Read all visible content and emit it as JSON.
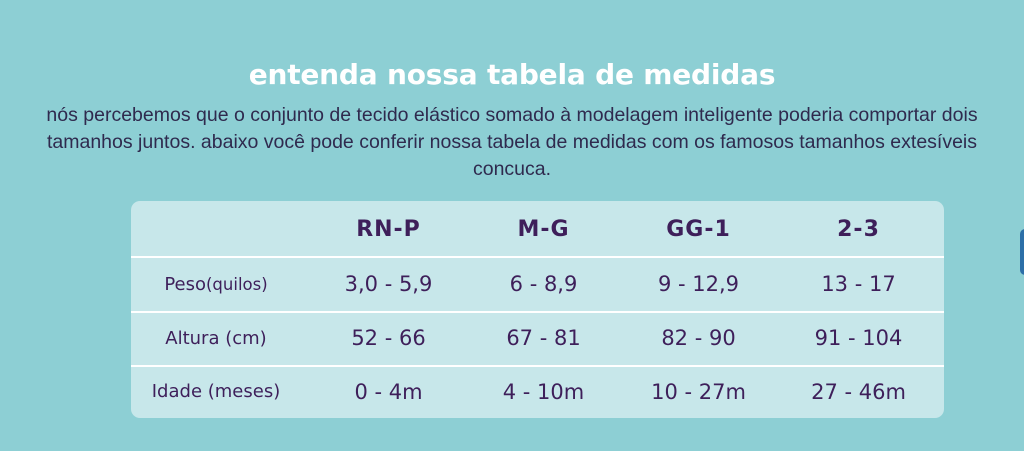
{
  "heading": {
    "title": "entenda nossa tabela de medidas",
    "intro_line1": "nós percebemos que o conjunto de tecido elástico somado à modelagem inteligente poderia comportar dois",
    "intro_line2": "tamanhos juntos. abaixo você pode conferir nossa tabela de medidas com os famosos tamanhos extesíveis",
    "intro_line3": "concuca."
  },
  "size_table": {
    "columns": [
      "",
      "RN-P",
      "M-G",
      "GG-1",
      "2-3"
    ],
    "rows": [
      {
        "label": "Peso",
        "unit": "(quilos)",
        "values": [
          "3,0 - 5,9",
          "6 - 8,9",
          "9 - 12,9",
          "13 - 17"
        ]
      },
      {
        "label": "Altura (cm)",
        "unit": "",
        "values": [
          "52 - 66",
          "67 - 81",
          "82 - 90",
          "91 - 104"
        ]
      },
      {
        "label": "Idade (meses)",
        "unit": "",
        "values": [
          "0 - 4m",
          "4 - 10m",
          "10 - 27m",
          "27 - 46m"
        ]
      }
    ]
  },
  "colors": {
    "background": "#8dcfd4",
    "table_background": "#c7e7ea",
    "table_text": "#3e1f5a",
    "title_text": "#ffffff",
    "body_text": "#2f2a4e"
  }
}
